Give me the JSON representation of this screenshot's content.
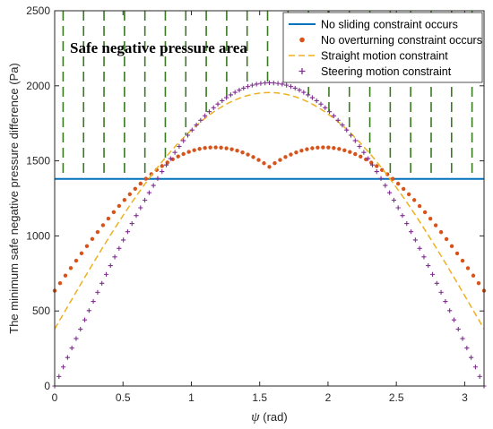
{
  "chart_data": {
    "type": "line",
    "title": "",
    "xlabel_symbol": "ψ",
    "xlabel_unit": " (rad)",
    "ylabel": "The minimum safe negative pressure difference (Pa)",
    "xlim": [
      0,
      3.1416
    ],
    "ylim": [
      0,
      2500
    ],
    "xticks": [
      0,
      0.5,
      1,
      1.5,
      2,
      2.5,
      3
    ],
    "xtick_labels": [
      "0",
      "0.5",
      "1",
      "1.5",
      "2",
      "2.5",
      "3"
    ],
    "yticks": [
      0,
      500,
      1000,
      1500,
      2000,
      2500
    ],
    "ytick_labels": [
      "0",
      "500",
      "1000",
      "1500",
      "2000",
      "2500"
    ],
    "grid": false,
    "legend_position": "top-right",
    "annotation": "Safe negative pressure area",
    "safe_area": {
      "color": "#3a7a22",
      "style": "vertical dashed hatching",
      "description_visible": false
    },
    "series": [
      {
        "name": "No sliding constraint occurs",
        "style": "solid line",
        "color": "#0072BD",
        "kind": "constant",
        "value": 1380
      },
      {
        "name": "No overturning constraint occurs",
        "style": "dots",
        "color": "#D95319",
        "kind": "two-hump",
        "start": 635,
        "peak": 1590,
        "peak_x": [
          1.17,
          1.97
        ],
        "middle": 1460,
        "end": 635,
        "points": 80
      },
      {
        "name": "Straight motion constraint",
        "style": "dashed line",
        "color": "#EDB120",
        "kind": "sine",
        "start": 380,
        "peak": 1955,
        "peak_x": 1.5708
      },
      {
        "name": "Steering motion constraint",
        "style": "plus markers",
        "color": "#7E2F8E",
        "kind": "sine",
        "start": 0,
        "peak": 2020,
        "peak_x": 1.5708,
        "points": 100
      }
    ]
  }
}
